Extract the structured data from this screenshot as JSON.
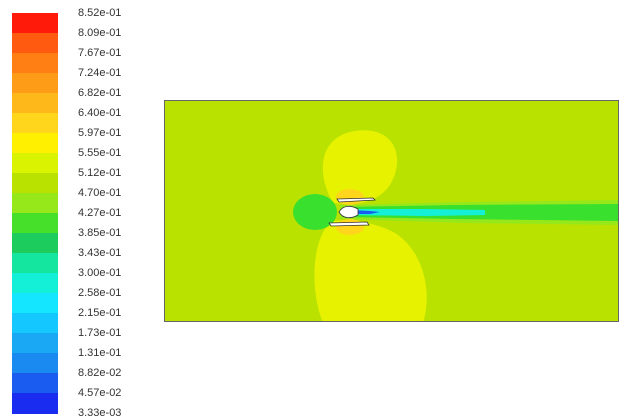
{
  "colorbar": {
    "labels": [
      "8.52e-01",
      "8.09e-01",
      "7.67e-01",
      "7.24e-01",
      "6.82e-01",
      "6.40e-01",
      "5.97e-01",
      "5.55e-01",
      "5.12e-01",
      "4.70e-01",
      "4.27e-01",
      "3.85e-01",
      "3.43e-01",
      "3.00e-01",
      "2.58e-01",
      "2.15e-01",
      "1.73e-01",
      "1.31e-01",
      "8.82e-02",
      "4.57e-02",
      "3.33e-03"
    ],
    "colors": [
      "#ff1a0a",
      "#ff5a10",
      "#ff7f14",
      "#ff9c17",
      "#ffb81a",
      "#ffd61c",
      "#fff000",
      "#d9f300",
      "#b9e200",
      "#96e81a",
      "#46e02a",
      "#1ccc5c",
      "#14e6a0",
      "#14f0d8",
      "#14e6ff",
      "#14c8ff",
      "#1aa8f5",
      "#1a8af0",
      "#1a5cf0",
      "#1a2cf0"
    ]
  },
  "field": {
    "background_color": "#b9e200",
    "colors": {
      "yellow_lobe": "#e6f200",
      "green_core": "#39e02e",
      "cyan": "#14f0d8",
      "blue": "#1a5cf0",
      "light_green": "#96e81a",
      "orange_tip": "#ffd61c",
      "body": "#ffffff",
      "outline": "#333333"
    }
  }
}
